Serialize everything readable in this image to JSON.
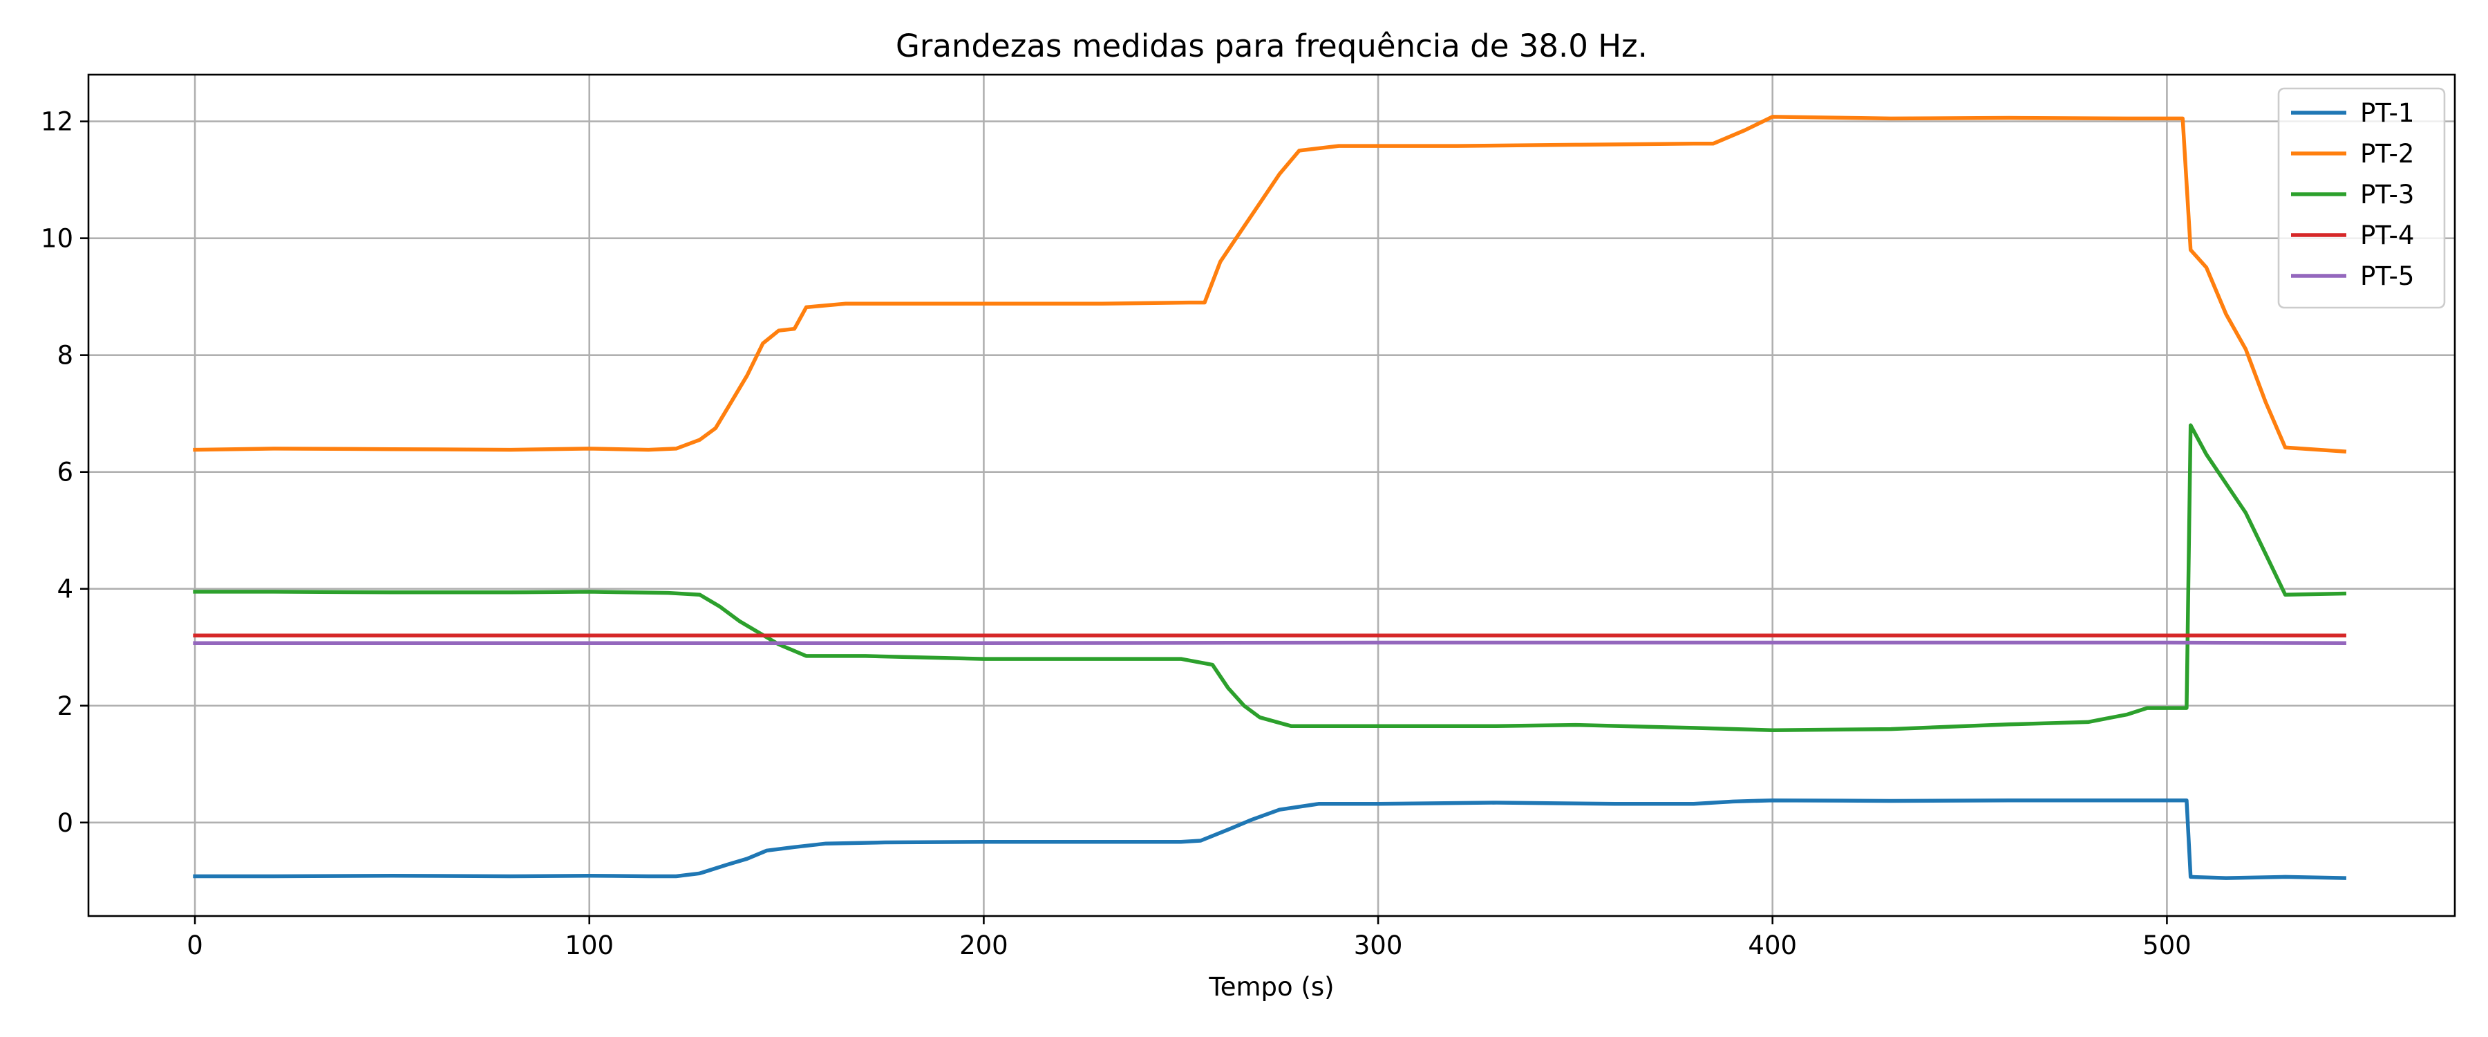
{
  "chart_data": {
    "type": "line",
    "title": "Grandezas medidas para frequência de 38.0 Hz.",
    "xlabel": "Tempo (s)",
    "ylabel": "",
    "xlim": [
      -27,
      573
    ],
    "ylim": [
      -1.6,
      12.8
    ],
    "x_ticks": [
      0,
      100,
      200,
      300,
      400,
      500
    ],
    "y_ticks": [
      0,
      2,
      4,
      6,
      8,
      10,
      12
    ],
    "grid": true,
    "legend_position": "top-right",
    "series": [
      {
        "name": "PT-1",
        "color": "#1f77b4",
        "points": [
          [
            0,
            -0.92
          ],
          [
            20,
            -0.92
          ],
          [
            50,
            -0.91
          ],
          [
            80,
            -0.92
          ],
          [
            100,
            -0.91
          ],
          [
            115,
            -0.92
          ],
          [
            122,
            -0.92
          ],
          [
            128,
            -0.87
          ],
          [
            135,
            -0.72
          ],
          [
            140,
            -0.62
          ],
          [
            145,
            -0.48
          ],
          [
            152,
            -0.42
          ],
          [
            160,
            -0.36
          ],
          [
            175,
            -0.34
          ],
          [
            200,
            -0.33
          ],
          [
            225,
            -0.33
          ],
          [
            250,
            -0.33
          ],
          [
            255,
            -0.31
          ],
          [
            262,
            -0.12
          ],
          [
            268,
            0.05
          ],
          [
            275,
            0.22
          ],
          [
            285,
            0.32
          ],
          [
            300,
            0.32
          ],
          [
            330,
            0.34
          ],
          [
            360,
            0.32
          ],
          [
            380,
            0.32
          ],
          [
            390,
            0.36
          ],
          [
            400,
            0.38
          ],
          [
            430,
            0.37
          ],
          [
            460,
            0.38
          ],
          [
            490,
            0.38
          ],
          [
            505,
            0.38
          ],
          [
            506,
            -0.93
          ],
          [
            515,
            -0.95
          ],
          [
            530,
            -0.93
          ],
          [
            545,
            -0.95
          ]
        ]
      },
      {
        "name": "PT-2",
        "color": "#ff7f0e",
        "points": [
          [
            0,
            6.38
          ],
          [
            20,
            6.4
          ],
          [
            50,
            6.39
          ],
          [
            80,
            6.38
          ],
          [
            100,
            6.4
          ],
          [
            115,
            6.38
          ],
          [
            122,
            6.4
          ],
          [
            128,
            6.55
          ],
          [
            132,
            6.75
          ],
          [
            136,
            7.2
          ],
          [
            140,
            7.65
          ],
          [
            144,
            8.2
          ],
          [
            148,
            8.42
          ],
          [
            152,
            8.45
          ],
          [
            155,
            8.82
          ],
          [
            165,
            8.88
          ],
          [
            200,
            8.88
          ],
          [
            230,
            8.88
          ],
          [
            252,
            8.9
          ],
          [
            256,
            8.9
          ],
          [
            260,
            9.6
          ],
          [
            265,
            10.1
          ],
          [
            270,
            10.6
          ],
          [
            275,
            11.1
          ],
          [
            280,
            11.5
          ],
          [
            290,
            11.58
          ],
          [
            320,
            11.58
          ],
          [
            350,
            11.6
          ],
          [
            380,
            11.62
          ],
          [
            385,
            11.62
          ],
          [
            393,
            11.85
          ],
          [
            400,
            12.08
          ],
          [
            430,
            12.05
          ],
          [
            460,
            12.06
          ],
          [
            490,
            12.05
          ],
          [
            504,
            12.05
          ],
          [
            506,
            9.8
          ],
          [
            510,
            9.5
          ],
          [
            515,
            8.7
          ],
          [
            520,
            8.1
          ],
          [
            525,
            7.2
          ],
          [
            530,
            6.42
          ],
          [
            545,
            6.35
          ]
        ]
      },
      {
        "name": "PT-3",
        "color": "#2ca02c",
        "points": [
          [
            0,
            3.95
          ],
          [
            20,
            3.95
          ],
          [
            50,
            3.94
          ],
          [
            80,
            3.94
          ],
          [
            100,
            3.95
          ],
          [
            120,
            3.93
          ],
          [
            128,
            3.9
          ],
          [
            133,
            3.7
          ],
          [
            138,
            3.45
          ],
          [
            143,
            3.25
          ],
          [
            148,
            3.05
          ],
          [
            155,
            2.85
          ],
          [
            170,
            2.85
          ],
          [
            200,
            2.8
          ],
          [
            230,
            2.8
          ],
          [
            250,
            2.8
          ],
          [
            258,
            2.7
          ],
          [
            262,
            2.3
          ],
          [
            266,
            2.0
          ],
          [
            270,
            1.8
          ],
          [
            278,
            1.65
          ],
          [
            300,
            1.65
          ],
          [
            330,
            1.65
          ],
          [
            350,
            1.67
          ],
          [
            380,
            1.62
          ],
          [
            400,
            1.58
          ],
          [
            430,
            1.6
          ],
          [
            460,
            1.68
          ],
          [
            480,
            1.72
          ],
          [
            490,
            1.85
          ],
          [
            495,
            1.96
          ],
          [
            505,
            1.96
          ],
          [
            506,
            6.8
          ],
          [
            510,
            6.3
          ],
          [
            515,
            5.8
          ],
          [
            520,
            5.3
          ],
          [
            525,
            4.6
          ],
          [
            530,
            3.9
          ],
          [
            545,
            3.92
          ]
        ]
      },
      {
        "name": "PT-4",
        "color": "#d62728",
        "points": [
          [
            0,
            3.2
          ],
          [
            100,
            3.2
          ],
          [
            200,
            3.2
          ],
          [
            300,
            3.2
          ],
          [
            400,
            3.2
          ],
          [
            500,
            3.2
          ],
          [
            545,
            3.2
          ]
        ]
      },
      {
        "name": "PT-5",
        "color": "#9467bd",
        "points": [
          [
            0,
            3.07
          ],
          [
            100,
            3.07
          ],
          [
            200,
            3.07
          ],
          [
            300,
            3.08
          ],
          [
            400,
            3.08
          ],
          [
            500,
            3.08
          ],
          [
            545,
            3.07
          ]
        ]
      }
    ]
  }
}
